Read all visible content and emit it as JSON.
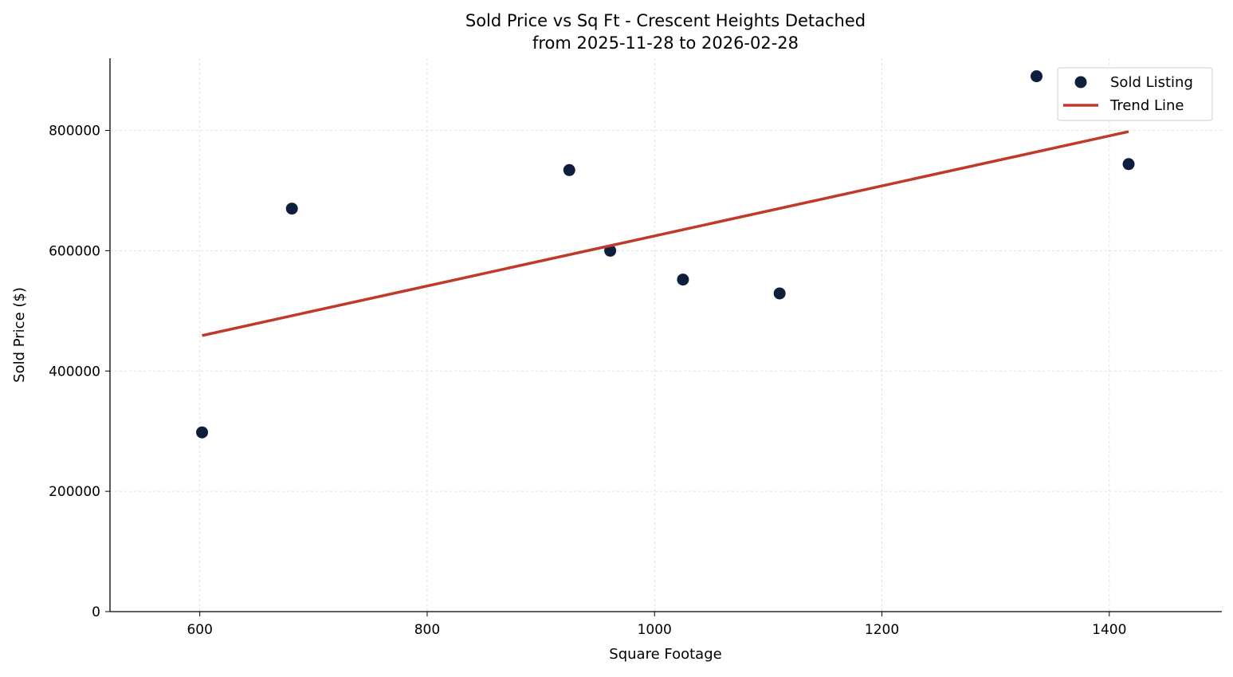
{
  "chart_data": {
    "type": "scatter",
    "title": "Sold Price vs Sq Ft - Crescent Heights Detached",
    "subtitle": "from 2025-11-28 to 2026-02-28",
    "xlabel": "Square Footage",
    "ylabel": "Sold Price ($)",
    "xlim": [
      521,
      1499
    ],
    "ylim": [
      0,
      920000
    ],
    "xticks": [
      600,
      800,
      1000,
      1200,
      1400
    ],
    "yticks": [
      0,
      200000,
      400000,
      600000,
      800000
    ],
    "grid": true,
    "legend_placement": "top-right",
    "series": [
      {
        "name": "Sold Listing",
        "kind": "scatter",
        "color": "#0d1f3c",
        "points": [
          {
            "x": 602,
            "y": 298000
          },
          {
            "x": 681,
            "y": 670000
          },
          {
            "x": 925,
            "y": 734000
          },
          {
            "x": 961,
            "y": 600000
          },
          {
            "x": 1025,
            "y": 552000
          },
          {
            "x": 1110,
            "y": 529000
          },
          {
            "x": 1336,
            "y": 890000
          },
          {
            "x": 1417,
            "y": 744000
          }
        ]
      },
      {
        "name": "Trend Line",
        "kind": "line",
        "color": "#c0392b",
        "points": [
          {
            "x": 602,
            "y": 459000
          },
          {
            "x": 1417,
            "y": 798000
          }
        ]
      }
    ]
  }
}
